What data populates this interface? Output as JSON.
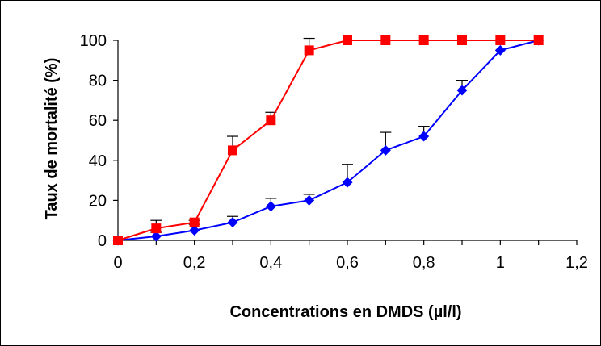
{
  "chart_data": {
    "type": "line",
    "title": "",
    "xlabel": "Concentrations en DMDS (µl/l)",
    "ylabel": "Taux de mortalité (%)",
    "xlim": [
      0,
      1.2
    ],
    "ylim": [
      0,
      100
    ],
    "x_ticks": [
      "0",
      "0,2",
      "0,4",
      "0,6",
      "0,8",
      "1",
      "1,2"
    ],
    "y_ticks": [
      "0",
      "20",
      "40",
      "60",
      "80",
      "100"
    ],
    "grid": false,
    "legend": "none",
    "series": [
      {
        "color": "#ff0000",
        "marker": "square",
        "x": [
          0,
          0.1,
          0.2,
          0.3,
          0.4,
          0.5,
          0.6,
          0.7,
          0.8,
          0.9,
          1.0,
          1.1
        ],
        "values": [
          0,
          6,
          9,
          45,
          60,
          95,
          100,
          100,
          100,
          100,
          100,
          100
        ],
        "error_plus": [
          0,
          4,
          1,
          7,
          4,
          6,
          0,
          0,
          0,
          0,
          0,
          0
        ]
      },
      {
        "color": "#0000ff",
        "marker": "diamond",
        "x": [
          0,
          0.1,
          0.2,
          0.3,
          0.4,
          0.5,
          0.6,
          0.7,
          0.8,
          0.9,
          1.0,
          1.1
        ],
        "values": [
          0,
          2,
          5,
          9,
          17,
          20,
          29,
          45,
          52,
          75,
          95,
          100
        ],
        "error_plus": [
          0,
          2,
          3,
          3,
          4,
          3,
          9,
          9,
          5,
          5,
          0,
          0
        ]
      }
    ]
  }
}
